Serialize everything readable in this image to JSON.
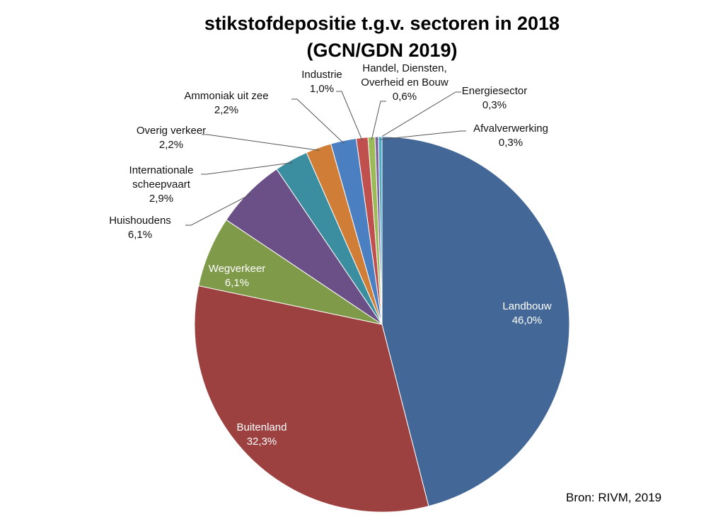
{
  "chart_data": {
    "type": "pie",
    "title": [
      "stikstofdepositie t.g.v. sectoren in 2018",
      "(GCN/GDN 2019)"
    ],
    "source": "Bron: RIVM, 2019",
    "start_angle": "12 o'clock, clockwise",
    "slices": [
      {
        "name": "Landbouw",
        "value": 46.0,
        "label": "46,0%",
        "color": "#436897"
      },
      {
        "name": "Buitenland",
        "value": 32.3,
        "label": "32,3%",
        "color": "#9c4140"
      },
      {
        "name": "Wegverkeer",
        "value": 6.1,
        "label": "6,1%",
        "color": "#7f9a48"
      },
      {
        "name": "Huishoudens",
        "value": 6.1,
        "label": "6,1%",
        "color": "#6a5087"
      },
      {
        "name": "Internationale scheepvaart",
        "value": 2.9,
        "label": "2,9%",
        "color": "#3b8ea0"
      },
      {
        "name": "Overig verkeer",
        "value": 2.2,
        "label": "2,2%",
        "color": "#d07d38"
      },
      {
        "name": "Ammoniak uit zee",
        "value": 2.2,
        "label": "2,2%",
        "color": "#4a7fc1"
      },
      {
        "name": "Industrie",
        "value": 1.0,
        "label": "1,0%",
        "color": "#c0504d"
      },
      {
        "name": "Handel, Diensten, Overheid en Bouw",
        "value": 0.6,
        "label": "0,6%",
        "color": "#9bbb59"
      },
      {
        "name": "Energiesector",
        "value": 0.3,
        "label": "0,3%",
        "color": "#8064a2"
      },
      {
        "name": "Afvalverwerking",
        "value": 0.3,
        "label": "0,3%",
        "color": "#4bacc6"
      }
    ]
  }
}
